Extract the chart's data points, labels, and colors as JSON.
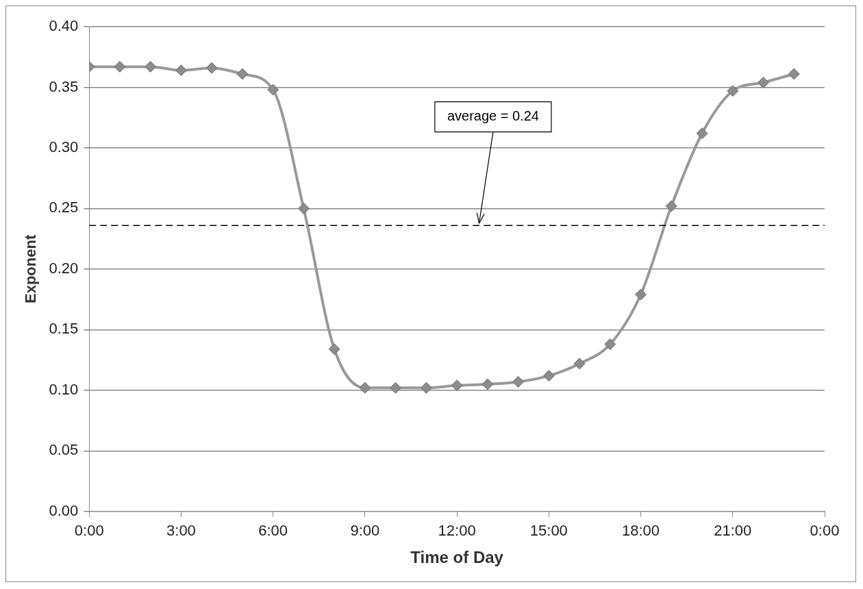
{
  "chart_data": {
    "type": "line",
    "xlabel": "Time of Day",
    "ylabel": "Exponent",
    "x": [
      0,
      1,
      2,
      3,
      4,
      5,
      6,
      7,
      8,
      9,
      10,
      11,
      12,
      13,
      14,
      15,
      16,
      17,
      18,
      19,
      20,
      21,
      22,
      23
    ],
    "series": [
      {
        "color": "#999999",
        "values": [
          0.367,
          0.367,
          0.367,
          0.364,
          0.366,
          0.361,
          0.348,
          0.25,
          0.134,
          0.102,
          0.102,
          0.102,
          0.104,
          0.105,
          0.107,
          0.112,
          0.122,
          0.138,
          0.179,
          0.252,
          0.312,
          0.347,
          0.354,
          0.361
        ]
      }
    ],
    "xlim": [
      0,
      24
    ],
    "xticks": [
      {
        "value": 0,
        "label": "0:00"
      },
      {
        "value": 3,
        "label": "3:00"
      },
      {
        "value": 6,
        "label": "6:00"
      },
      {
        "value": 9,
        "label": "9:00"
      },
      {
        "value": 12,
        "label": "12:00"
      },
      {
        "value": 15,
        "label": "15:00"
      },
      {
        "value": 18,
        "label": "18:00"
      },
      {
        "value": 21,
        "label": "21:00"
      },
      {
        "value": 24,
        "label": "0:00"
      }
    ],
    "ylim": [
      0,
      0.4
    ],
    "yticks": [
      {
        "value": 0,
        "label": "0.00"
      },
      {
        "value": 0.05,
        "label": "0.05"
      },
      {
        "value": 0.1,
        "label": "0.10"
      },
      {
        "value": 0.15,
        "label": "0.15"
      },
      {
        "value": 0.2,
        "label": "0.20"
      },
      {
        "value": 0.25,
        "label": "0.25"
      },
      {
        "value": 0.3,
        "label": "0.30"
      },
      {
        "value": 0.35,
        "label": "0.35"
      },
      {
        "value": 0.4,
        "label": "0.40"
      }
    ],
    "ref_lines": [
      {
        "axis": "y",
        "value": 0.236,
        "label": "average = 0.24",
        "color": "#000000",
        "line_style": "dashed"
      }
    ],
    "grid": "y",
    "legend": false,
    "marker": "diamond",
    "line_style": "solid"
  }
}
